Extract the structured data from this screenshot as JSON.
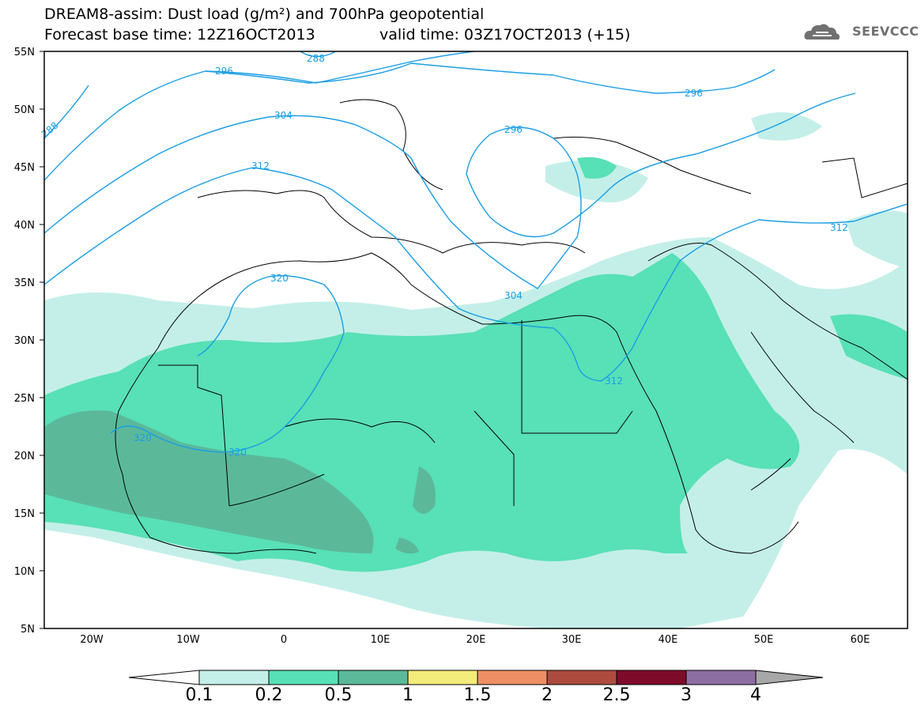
{
  "header": {
    "title": "DREAM8-assim: Dust load (g/m²) and 700hPa geopotential",
    "base_time": "Forecast base time: 12Z16OCT2013",
    "valid_time": "valid time: 03Z17OCT2013 (+15)"
  },
  "logo": {
    "text": "SEEVCCC",
    "icon": "cloud-logo-icon"
  },
  "map": {
    "lat_labels": [
      "55N",
      "50N",
      "45N",
      "40N",
      "35N",
      "30N",
      "25N",
      "20N",
      "15N",
      "10N",
      "5N"
    ],
    "lon_labels": [
      "20W",
      "10W",
      "0",
      "10E",
      "20E",
      "30E",
      "40E",
      "50E",
      "60E"
    ],
    "geopotential_labels": [
      "288",
      "296",
      "288",
      "304",
      "296",
      "296",
      "312",
      "312",
      "320",
      "304",
      "312",
      "320",
      "320"
    ],
    "contour_color": "#1a9ee6",
    "coastline_color": "#000000"
  },
  "colorbar": {
    "labels": [
      "0.1",
      "0.2",
      "0.5",
      "1",
      "1.5",
      "2",
      "2.5",
      "3",
      "4"
    ],
    "colors": [
      "#ffffff",
      "#c4efe9",
      "#58e0b6",
      "#5bb99a",
      "#f4ec7a",
      "#ee8f66",
      "#ad4b3e",
      "#7f0b2b",
      "#8d6ea3",
      "#a8a8a8"
    ]
  }
}
